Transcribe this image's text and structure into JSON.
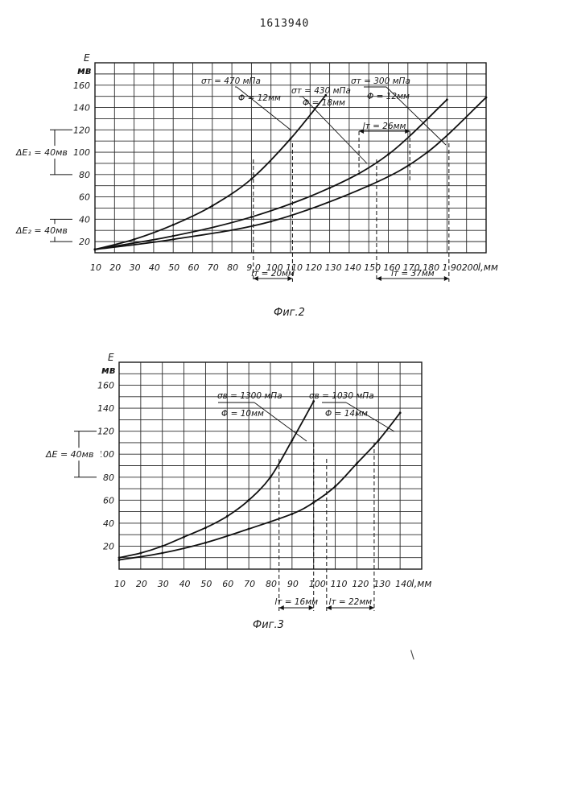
{
  "page": {
    "patent_number": "1613940",
    "stray_mark": "\\"
  },
  "chart_data": [
    {
      "type": "line",
      "caption": "Фиг.2",
      "ylabel_symbol": "E",
      "ylabel_unit": "мв",
      "xlabel": "l,мм",
      "xlim": [
        10,
        210
      ],
      "ylim": [
        10,
        180
      ],
      "x_ticks": [
        10,
        20,
        30,
        40,
        50,
        60,
        70,
        80,
        90,
        100,
        110,
        120,
        130,
        140,
        150,
        160,
        170,
        180,
        190,
        200
      ],
      "x_tick_labels": [
        "10",
        "20",
        "30",
        "40",
        "50",
        "60",
        "70",
        "80",
        "9 0",
        "100",
        "110",
        "120",
        "130",
        "140",
        "150",
        "160",
        "170",
        "180",
        "1 90",
        "200"
      ],
      "y_ticks": [
        20,
        40,
        60,
        80,
        100,
        120,
        140,
        160
      ],
      "y_tick_labels": [
        "20",
        "40",
        "60",
        "80",
        "100",
        "120",
        "140",
        "160"
      ],
      "series": [
        {
          "name": "σт = 470 мПа, Φ = 12мм",
          "label_line1": "σт = 470 мПа",
          "label_line2": "Φ = 12мм",
          "x": [
            10,
            30,
            50,
            70,
            90,
            110,
            128
          ],
          "y": [
            13,
            22,
            35,
            52,
            76,
            112,
            151
          ]
        },
        {
          "name": "σт = 430 мПа, Φ = 18мм",
          "label_line1": "σт = 430 мПа",
          "label_line2": "Φ = 18мм",
          "x": [
            10,
            50,
            90,
            130,
            160,
            190
          ],
          "y": [
            13,
            25,
            42,
            68,
            98,
            147
          ]
        },
        {
          "name": "σт = 300 мПа, Φ = 12мм",
          "label_line1": "σт = 300 мПа",
          "label_line2": "Φ = 12мм",
          "x": [
            10,
            50,
            100,
            150,
            180,
            210
          ],
          "y": [
            13,
            22,
            38,
            70,
            100,
            149
          ]
        }
      ],
      "delta_labels": [
        "ΔE₁ = 40мв",
        "ΔE₂ = 40мв"
      ],
      "delta_ranges": [
        [
          80,
          120
        ],
        [
          20,
          40
        ]
      ],
      "lt_labels": [
        "lт = 20мм",
        "lт = 26мм",
        "lт = 37мм"
      ],
      "lt_ranges": [
        [
          91,
          111
        ],
        [
          145,
          171
        ],
        [
          154,
          191
        ]
      ]
    },
    {
      "type": "line",
      "caption": "Фиг.3",
      "ylabel_symbol": "E",
      "ylabel_unit": "мв",
      "xlabel": "l,мм",
      "xlim": [
        10,
        150
      ],
      "ylim": [
        0,
        180
      ],
      "x_ticks": [
        10,
        20,
        30,
        40,
        50,
        60,
        70,
        80,
        90,
        100,
        110,
        120,
        130,
        140
      ],
      "x_tick_labels": [
        "10",
        "20",
        "30",
        "40",
        "50",
        "60",
        "70",
        "80",
        "90",
        "100",
        "110",
        "120",
        "130",
        "140"
      ],
      "y_ticks": [
        20,
        40,
        60,
        80,
        100,
        120,
        140,
        160
      ],
      "y_tick_labels": [
        "20",
        "40",
        "60",
        "80",
        "100",
        "120",
        "140",
        "160"
      ],
      "series": [
        {
          "name": "σв = 1300 мПа, Φ = 10мм",
          "label_line1": "σв = 1300 мПа",
          "label_line2": "Φ = 10мм",
          "x": [
            10,
            20,
            30,
            40,
            50,
            60,
            70,
            80,
            90,
            100
          ],
          "y": [
            10,
            14,
            20,
            28,
            36,
            46,
            60,
            80,
            112,
            146
          ]
        },
        {
          "name": "σв = 1030 мПа, Φ = 14мм",
          "label_line1": "σв = 1030 мПа",
          "label_line2": "Φ = 14мм",
          "x": [
            10,
            30,
            50,
            70,
            90,
            100,
            110,
            120,
            130,
            140
          ],
          "y": [
            8,
            14,
            23,
            35,
            48,
            58,
            72,
            92,
            112,
            136
          ]
        }
      ],
      "delta_labels": [
        "ΔE = 40мв"
      ],
      "delta_ranges": [
        [
          80,
          120
        ]
      ],
      "lt_labels": [
        "lт = 16мм",
        "lт = 22мм"
      ],
      "lt_ranges": [
        [
          84,
          100
        ],
        [
          106,
          128
        ]
      ]
    }
  ]
}
